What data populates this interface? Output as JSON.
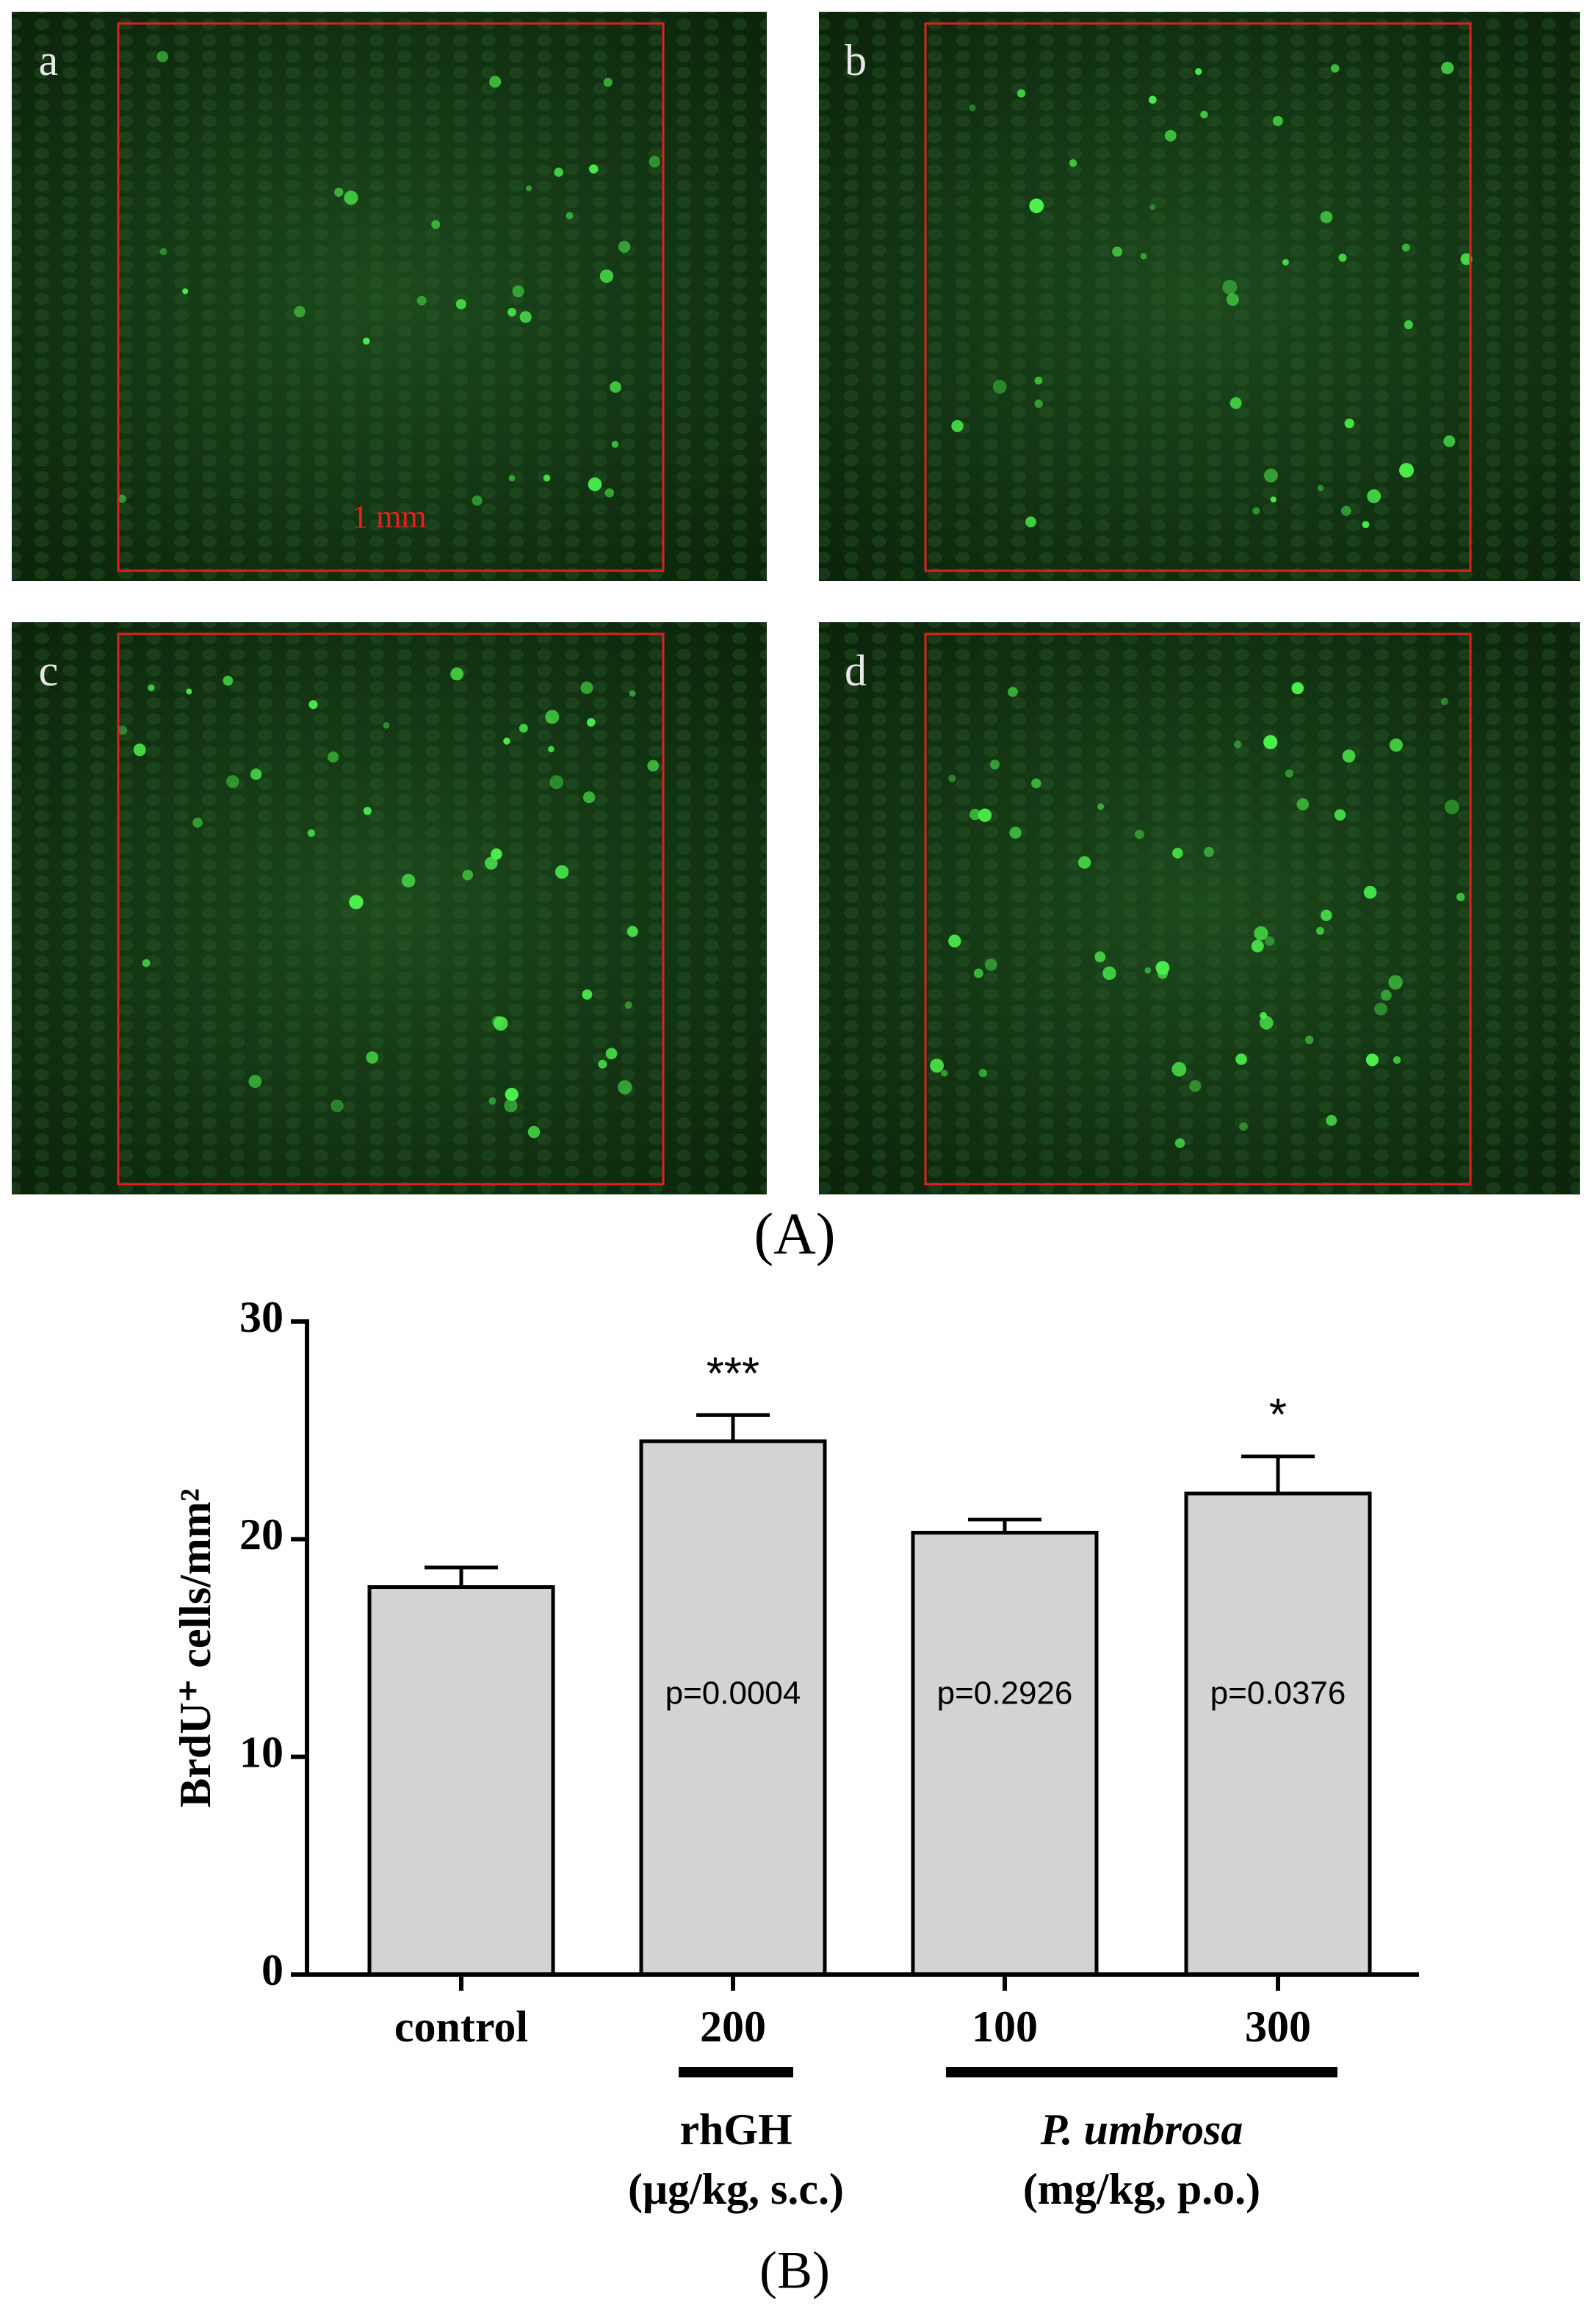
{
  "figure": {
    "panels": [
      "a",
      "b",
      "c",
      "d"
    ],
    "scale_label": "1 mm",
    "part_a": "(A)",
    "part_b": "(B)"
  },
  "chart_data": {
    "type": "bar",
    "y_label": "BrdU⁺ cells/mm²",
    "categories": [
      "control",
      "200",
      "100",
      "300"
    ],
    "values": [
      17.8,
      24.5,
      20.3,
      22.1
    ],
    "errors": [
      0.9,
      1.2,
      0.6,
      1.7
    ],
    "star_labels": [
      null,
      "***",
      null,
      "*"
    ],
    "p_labels": [
      null,
      "p=0.0004",
      "p=0.2926",
      "p=0.0376"
    ],
    "groups": [
      {
        "name": "rhGH",
        "unit": "(μg/kg, s.c.)"
      },
      {
        "name": "P. umbrosa",
        "unit": "(mg/kg, p.o.)"
      }
    ],
    "color": "#d3d3d3",
    "ylim": [
      0,
      30
    ],
    "yticks": [
      0,
      10,
      20,
      30
    ],
    "grid": false
  }
}
